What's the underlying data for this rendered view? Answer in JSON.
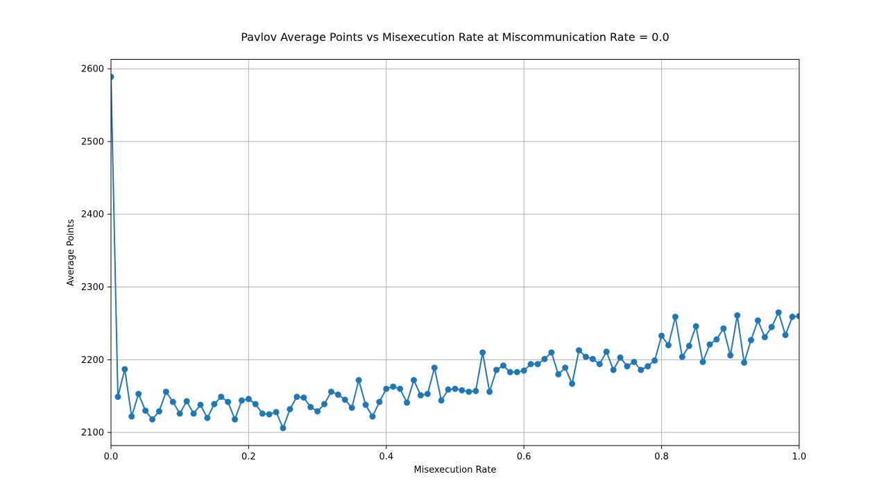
{
  "chart_data": {
    "type": "line",
    "title": "Pavlov Average Points vs Misexecution Rate at Miscommunication Rate = 0.0",
    "xlabel": "Misexecution Rate",
    "ylabel": "Average Points",
    "xlim": [
      0.0,
      1.0
    ],
    "ylim": [
      2082,
      2613
    ],
    "xticks": [
      0.0,
      0.2,
      0.4,
      0.6,
      0.8,
      1.0
    ],
    "xtick_labels": [
      "0.0",
      "0.2",
      "0.4",
      "0.6",
      "0.8",
      "1.0"
    ],
    "yticks": [
      2100,
      2200,
      2300,
      2400,
      2500,
      2600
    ],
    "ytick_labels": [
      "2100",
      "2200",
      "2300",
      "2400",
      "2500",
      "2600"
    ],
    "grid": true,
    "legend": "none",
    "series": [
      {
        "color": "#1f77b4",
        "marker": "circle",
        "x": [
          0.0,
          0.01,
          0.02,
          0.03,
          0.04,
          0.05,
          0.06,
          0.07,
          0.08,
          0.09,
          0.1,
          0.11,
          0.12,
          0.13,
          0.14,
          0.15,
          0.16,
          0.17,
          0.18,
          0.19,
          0.2,
          0.21,
          0.22,
          0.23,
          0.24,
          0.25,
          0.26,
          0.27,
          0.28,
          0.29,
          0.3,
          0.31,
          0.32,
          0.33,
          0.34,
          0.35,
          0.36,
          0.37,
          0.38,
          0.39,
          0.4,
          0.41,
          0.42,
          0.43,
          0.44,
          0.45,
          0.46,
          0.47,
          0.48,
          0.49,
          0.5,
          0.51,
          0.52,
          0.53,
          0.54,
          0.55,
          0.56,
          0.57,
          0.58,
          0.59,
          0.6,
          0.61,
          0.62,
          0.63,
          0.64,
          0.65,
          0.66,
          0.67,
          0.68,
          0.69,
          0.7,
          0.71,
          0.72,
          0.73,
          0.74,
          0.75,
          0.76,
          0.77,
          0.78,
          0.79,
          0.8,
          0.81,
          0.82,
          0.83,
          0.84,
          0.85,
          0.86,
          0.87,
          0.88,
          0.89,
          0.9,
          0.91,
          0.92,
          0.93,
          0.94,
          0.95,
          0.96,
          0.97,
          0.98,
          0.99,
          1.0
        ],
        "y": [
          2589,
          2149,
          2187,
          2122,
          2153,
          2130,
          2118,
          2129,
          2156,
          2142,
          2126,
          2143,
          2126,
          2138,
          2120,
          2139,
          2149,
          2142,
          2118,
          2144,
          2146,
          2139,
          2126,
          2125,
          2128,
          2106,
          2132,
          2149,
          2148,
          2135,
          2129,
          2139,
          2156,
          2152,
          2145,
          2134,
          2172,
          2138,
          2122,
          2142,
          2160,
          2163,
          2160,
          2141,
          2172,
          2151,
          2153,
          2189,
          2144,
          2159,
          2160,
          2158,
          2156,
          2157,
          2210,
          2156,
          2186,
          2192,
          2183,
          2183,
          2185,
          2194,
          2194,
          2201,
          2210,
          2180,
          2189,
          2167,
          2213,
          2204,
          2201,
          2194,
          2211,
          2186,
          2203,
          2191,
          2197,
          2186,
          2191,
          2199,
          2233,
          2220,
          2259,
          2204,
          2219,
          2246,
          2197,
          2221,
          2228,
          2243,
          2206,
          2261,
          2196,
          2227,
          2254,
          2231,
          2245,
          2265,
          2234,
          2259,
          2260
        ]
      }
    ]
  }
}
